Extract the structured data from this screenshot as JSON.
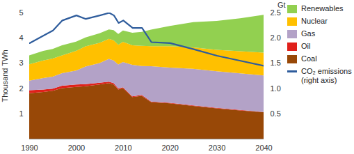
{
  "chart_data": {
    "type": "area",
    "stacked": true,
    "ylabel": "Thousand TWh",
    "y2label": "Gt",
    "x": [
      1990,
      1993,
      1995,
      1997,
      2000,
      2002,
      2005,
      2007,
      2008,
      2009,
      2010,
      2012,
      2014,
      2016,
      2020,
      2025,
      2030,
      2035,
      2040
    ],
    "xlim": [
      1990,
      2040
    ],
    "xticks": [
      1990,
      2000,
      2010,
      2020,
      2030,
      2040
    ],
    "ylim": [
      0,
      5
    ],
    "yticks": [
      1,
      2,
      3,
      4,
      5
    ],
    "y2lim": [
      0,
      2.5
    ],
    "y2ticks": [
      {
        "value": 0.5,
        "label": "0.5"
      },
      {
        "value": 1,
        "label": "1.0"
      },
      {
        "value": 1.5,
        "label": "1.5"
      },
      {
        "value": 2,
        "label": "2.0"
      },
      {
        "value": 2.5,
        "label": "2.5"
      }
    ],
    "grid": false,
    "legend": "right",
    "series": [
      {
        "name": "Coal",
        "color": "#984807",
        "values": [
          1.8,
          1.85,
          1.9,
          2.0,
          2.05,
          2.08,
          2.15,
          2.2,
          2.15,
          1.95,
          2.0,
          1.65,
          1.7,
          1.45,
          1.4,
          1.3,
          1.2,
          1.12,
          1.05
        ]
      },
      {
        "name": "Oil",
        "color": "#e0201b",
        "values": [
          0.12,
          0.1,
          0.08,
          0.1,
          0.1,
          0.08,
          0.07,
          0.06,
          0.05,
          0.04,
          0.04,
          0.03,
          0.03,
          0.02,
          0.02,
          0.02,
          0.02,
          0.02,
          0.01
        ]
      },
      {
        "name": "Gas",
        "color": "#b3a2c7",
        "values": [
          0.38,
          0.45,
          0.48,
          0.5,
          0.55,
          0.7,
          0.78,
          0.9,
          0.9,
          0.95,
          1.0,
          1.25,
          1.15,
          1.4,
          1.4,
          1.45,
          1.45,
          1.45,
          1.45
        ]
      },
      {
        "name": "Nuclear",
        "color": "#ffc000",
        "values": [
          0.65,
          0.7,
          0.72,
          0.7,
          0.78,
          0.8,
          0.8,
          0.8,
          0.8,
          0.78,
          0.8,
          0.77,
          0.8,
          0.8,
          0.85,
          0.85,
          0.85,
          0.88,
          0.9
        ]
      },
      {
        "name": "Renewables",
        "color": "#92d050",
        "values": [
          0.35,
          0.38,
          0.38,
          0.4,
          0.37,
          0.35,
          0.38,
          0.37,
          0.4,
          0.43,
          0.45,
          0.5,
          0.55,
          0.65,
          0.8,
          1.0,
          1.15,
          1.3,
          1.5
        ]
      },
      {
        "name": "CO₂ emissions (right axis)",
        "color": "#2e5c9c",
        "type": "line",
        "axis": "y2",
        "values": [
          1.9,
          2.05,
          2.15,
          2.35,
          2.45,
          2.38,
          2.45,
          2.5,
          2.45,
          2.3,
          2.35,
          2.2,
          2.2,
          1.92,
          1.9,
          1.78,
          1.65,
          1.55,
          1.45
        ]
      }
    ]
  }
}
